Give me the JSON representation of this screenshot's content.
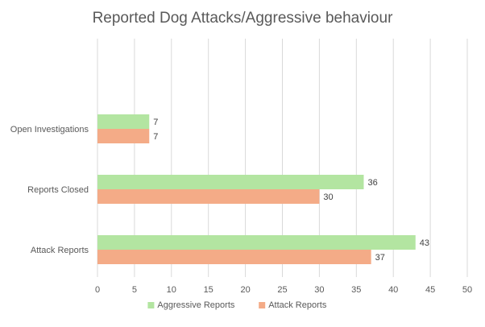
{
  "chart_data": {
    "type": "bar",
    "orientation": "horizontal",
    "title": "Reported Dog Attacks/Aggressive behaviour",
    "categories": [
      "Open Investigations",
      "Reports Closed",
      "Attack Reports"
    ],
    "series": [
      {
        "name": "Aggressive Reports",
        "values": [
          7,
          36,
          43
        ],
        "color": "#b3e5a1"
      },
      {
        "name": "Attack Reports",
        "values": [
          7,
          30,
          37
        ],
        "color": "#f4ab87"
      }
    ],
    "xlim": [
      0,
      50
    ],
    "xticks": [
      0,
      5,
      10,
      15,
      20,
      25,
      30,
      35,
      40,
      45,
      50
    ],
    "grid": true,
    "legend": "bottom",
    "data_labels": true
  }
}
